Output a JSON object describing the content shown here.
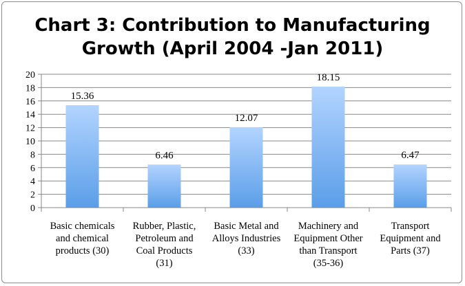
{
  "chart_data": {
    "type": "bar",
    "title_lines": [
      "Chart 3: Contribution to Manufacturing",
      "Growth (April 2004 -Jan 2011)"
    ],
    "categories": [
      [
        "Basic chemicals",
        "and chemical",
        "products (30)"
      ],
      [
        "Rubber, Plastic,",
        "Petroleum and",
        "Coal Products",
        "(31)"
      ],
      [
        "Basic Metal and",
        "Alloys Industries",
        "(33)"
      ],
      [
        "Machinery and",
        "Equipment Other",
        "than Transport",
        "(35-36)"
      ],
      [
        "Transport",
        "Equipment and",
        "Parts (37)"
      ]
    ],
    "values": [
      15.36,
      6.46,
      12.07,
      18.15,
      6.47
    ],
    "data_labels": [
      "15.36",
      "6.46",
      "12.07",
      "18.15",
      "6.47"
    ],
    "ylim": [
      0,
      20
    ],
    "yticks": [
      "0",
      "2",
      "4",
      "6",
      "8",
      "10",
      "12",
      "14",
      "16",
      "18",
      "20"
    ],
    "grid": true,
    "legend": "none",
    "colors": {
      "bar_top": "#b3d4ff",
      "bar_bottom": "#5a9ee8",
      "grid": "#878787",
      "axis": "#878787"
    }
  }
}
